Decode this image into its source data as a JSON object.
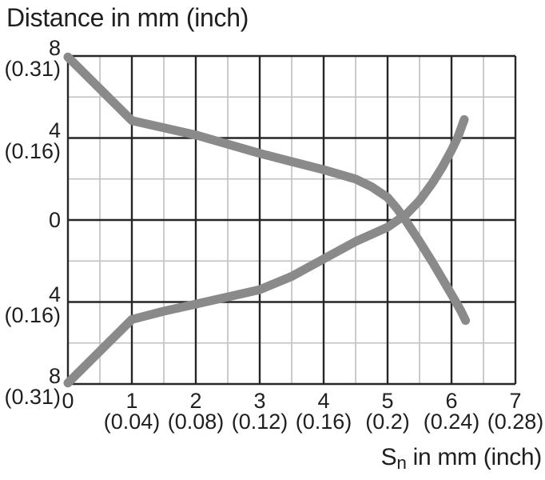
{
  "title": "Distance in mm (inch)",
  "x_axis_label": {
    "prefix": "S",
    "sub": "n",
    "suffix": " in mm (inch)"
  },
  "chart_data": {
    "type": "line",
    "title": "Distance in mm (inch)",
    "xlabel": "Sn in mm (inch)",
    "ylabel": "Distance in mm (inch)",
    "xlim": [
      0,
      7
    ],
    "ylim": [
      -8,
      8
    ],
    "x_major_step": 1,
    "x_minor_step": 0.5,
    "y_major_step": 4,
    "y_minor_step": 2,
    "grid": "on",
    "legend": "none",
    "x_ticks": [
      {
        "value": 0,
        "mm": "0",
        "inch": ""
      },
      {
        "value": 1,
        "mm": "1",
        "inch": "(0.04)"
      },
      {
        "value": 2,
        "mm": "2",
        "inch": "(0.08)"
      },
      {
        "value": 3,
        "mm": "3",
        "inch": "(0.12)"
      },
      {
        "value": 4,
        "mm": "4",
        "inch": "(0.16)"
      },
      {
        "value": 5,
        "mm": "5",
        "inch": "(0.2)"
      },
      {
        "value": 6,
        "mm": "6",
        "inch": "(0.24)"
      },
      {
        "value": 7,
        "mm": "7",
        "inch": "(0.28)"
      }
    ],
    "y_ticks": [
      {
        "value": 8,
        "mm": "8",
        "inch": "(0.31)"
      },
      {
        "value": 4,
        "mm": "4",
        "inch": "(0.16)"
      },
      {
        "value": 0,
        "mm": "0",
        "inch": ""
      },
      {
        "value": -4,
        "mm": "4",
        "inch": "(0.16)"
      },
      {
        "value": -8,
        "mm": "8",
        "inch": "(0.31)"
      }
    ],
    "series": [
      {
        "name": "upper-curve-descending",
        "points": [
          [
            0,
            7.95
          ],
          [
            0.5,
            6.4
          ],
          [
            1,
            4.85
          ],
          [
            1.5,
            4.5
          ],
          [
            2,
            4.15
          ],
          [
            2.5,
            3.7
          ],
          [
            3,
            3.25
          ],
          [
            3.5,
            2.85
          ],
          [
            4,
            2.45
          ],
          [
            4.5,
            2.0
          ],
          [
            4.75,
            1.62
          ],
          [
            5,
            1.1
          ],
          [
            5.15,
            0.55
          ],
          [
            5.3,
            -0.1
          ],
          [
            5.5,
            -1.05
          ],
          [
            5.7,
            -2.05
          ],
          [
            5.9,
            -3.1
          ],
          [
            6.05,
            -3.9
          ],
          [
            6.15,
            -4.45
          ],
          [
            6.22,
            -4.9
          ]
        ]
      },
      {
        "name": "lower-curve-ascending",
        "points": [
          [
            0,
            -7.95
          ],
          [
            0.5,
            -6.4
          ],
          [
            1,
            -4.85
          ],
          [
            1.5,
            -4.45
          ],
          [
            2,
            -4.1
          ],
          [
            2.5,
            -3.75
          ],
          [
            3,
            -3.4
          ],
          [
            3.5,
            -2.75
          ],
          [
            4,
            -1.9
          ],
          [
            4.5,
            -1.05
          ],
          [
            5,
            -0.35
          ],
          [
            5.3,
            0.3
          ],
          [
            5.5,
            0.95
          ],
          [
            5.7,
            1.8
          ],
          [
            5.85,
            2.55
          ],
          [
            6.0,
            3.4
          ],
          [
            6.1,
            4.05
          ],
          [
            6.2,
            4.9
          ]
        ]
      }
    ],
    "crossing_point": [
      5.25,
      0.15
    ],
    "colors": {
      "curve": "#8a8a8a",
      "grid_major": "#262626",
      "grid_minor": "#c0c0c0",
      "text": "#1f1f1f",
      "background": "#ffffff"
    }
  }
}
